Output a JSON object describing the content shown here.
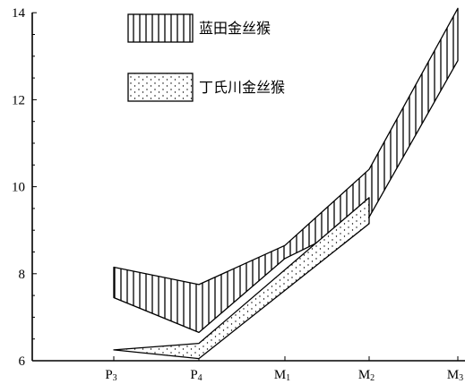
{
  "chart_data": {
    "type": "area",
    "title": "",
    "xlabel": "",
    "ylabel": "",
    "categories": [
      {
        "base": "P",
        "sub": "3"
      },
      {
        "base": "P",
        "sub": "4"
      },
      {
        "base": "M",
        "sub": "1"
      },
      {
        "base": "M",
        "sub": "2"
      },
      {
        "base": "M",
        "sub": "3"
      }
    ],
    "ylim": [
      6,
      14.2
    ],
    "yticks": [
      "6",
      "8",
      "10",
      "12",
      "14"
    ],
    "grid": false,
    "legend_position": "top-center",
    "series": [
      {
        "name": "蓝田金丝猴",
        "pattern": "vertical-hatch",
        "upper": [
          8.15,
          7.75,
          8.65,
          10.4,
          14.1
        ],
        "lower": [
          7.45,
          6.65,
          8.35,
          9.3,
          12.9
        ],
        "points": [
          {
            "x": 0,
            "upper": 8.15,
            "lower": 7.45
          },
          {
            "x": 1,
            "upper": 7.75,
            "lower": 6.65
          },
          {
            "x": 2,
            "upper": 8.65,
            "lower": 8.35
          },
          {
            "x": 3,
            "upper": 10.4,
            "lower": 9.3
          },
          {
            "x": 4,
            "upper": 14.1,
            "lower": 12.9
          }
        ]
      },
      {
        "name": "丁氏川金丝猴",
        "pattern": "stipple",
        "upper": [
          6.25,
          6.4,
          null,
          9.75,
          null
        ],
        "lower": [
          6.25,
          6.05,
          null,
          9.15,
          null
        ],
        "points": [
          {
            "x": 0,
            "upper": 6.25,
            "lower": 6.25
          },
          {
            "x": 1,
            "upper": 6.4,
            "lower": 6.05
          },
          {
            "x": 3,
            "upper": 9.75,
            "lower": 9.15
          }
        ]
      }
    ]
  }
}
